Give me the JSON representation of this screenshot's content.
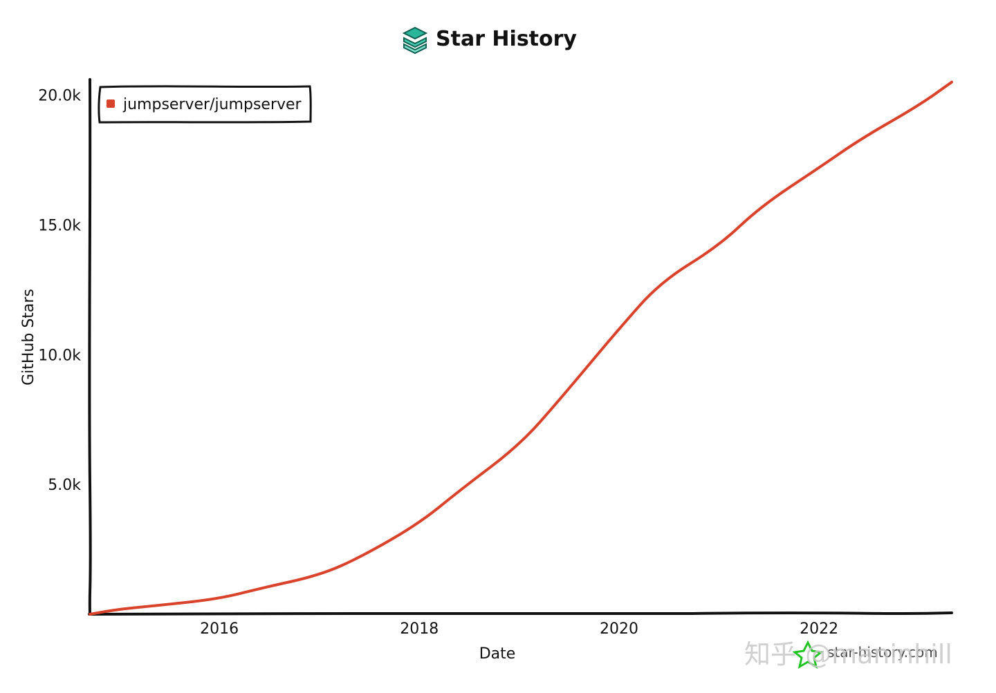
{
  "header": {
    "title": "Star History"
  },
  "chart_data": {
    "type": "line",
    "title": "Star History",
    "xlabel": "Date",
    "ylabel": "GitHub Stars",
    "x_ticks": [
      "2016",
      "2018",
      "2020",
      "2022"
    ],
    "y_ticks": [
      "5.0k",
      "10.0k",
      "15.0k",
      "20.0k"
    ],
    "y_tick_values": [
      5000,
      10000,
      15000,
      20000
    ],
    "xlim": [
      "2014-09-15",
      "2023-05-01"
    ],
    "ylim": [
      0,
      20600
    ],
    "grid": false,
    "legend_position": "top-left",
    "series": [
      {
        "name": "jumpserver/jumpserver",
        "color": "#d9422b",
        "points": [
          [
            "2014-09-15",
            0
          ],
          [
            "2015-01-01",
            200
          ],
          [
            "2015-06-01",
            350
          ],
          [
            "2016-01-01",
            600
          ],
          [
            "2016-06-01",
            1000
          ],
          [
            "2017-01-01",
            1500
          ],
          [
            "2017-06-01",
            2200
          ],
          [
            "2018-01-01",
            3500
          ],
          [
            "2018-06-01",
            4800
          ],
          [
            "2019-01-01",
            6500
          ],
          [
            "2019-06-01",
            8300
          ],
          [
            "2020-01-01",
            11000
          ],
          [
            "2020-06-01",
            12800
          ],
          [
            "2021-01-01",
            14200
          ],
          [
            "2021-06-01",
            15700
          ],
          [
            "2022-01-01",
            17200
          ],
          [
            "2022-06-01",
            18300
          ],
          [
            "2023-01-01",
            19600
          ],
          [
            "2023-05-01",
            20500
          ]
        ]
      }
    ]
  },
  "footer": {
    "site": "star-history.com",
    "watermark": "知乎 @maninhill"
  }
}
